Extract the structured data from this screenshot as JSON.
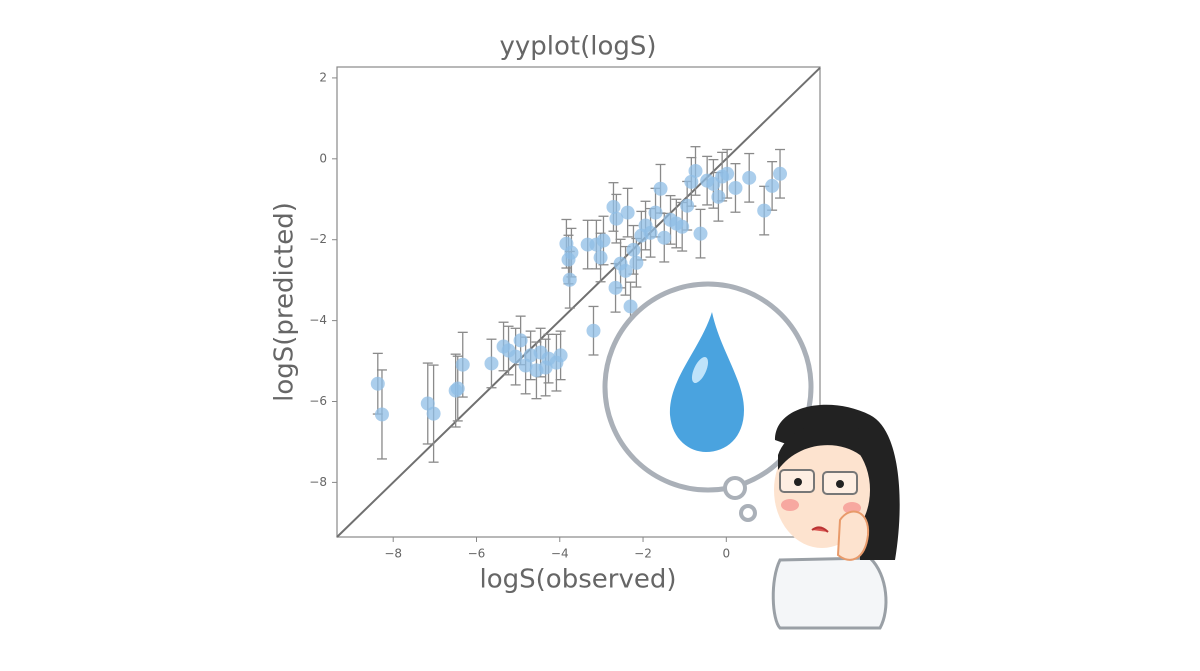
{
  "chart_data": {
    "type": "scatter",
    "title": "yyplot(logS)",
    "x_label": "logS(observed)",
    "y_label": "logS(predicted)",
    "xlim": [
      -9.35,
      2.25
    ],
    "ylim": [
      -9.35,
      2.27
    ],
    "xticks": [
      {
        "value": -8,
        "label": "−8"
      },
      {
        "value": -6,
        "label": "−6"
      },
      {
        "value": -4,
        "label": "−4"
      },
      {
        "value": -2,
        "label": "−2"
      },
      0
    ],
    "yticks": [
      2,
      0,
      {
        "value": -2,
        "label": "−2"
      },
      {
        "value": -4,
        "label": "−4"
      },
      {
        "value": -6,
        "label": "−6"
      },
      {
        "value": -8,
        "label": "−8"
      }
    ],
    "color": "#8fbde6",
    "errorbar_color": "#8a8a8a",
    "reference_line": true,
    "x": [
      -8.37,
      -8.27,
      -7.17,
      -7.03,
      -6.5,
      -6.45,
      -6.33,
      -5.64,
      -5.35,
      -5.23,
      -5.06,
      -4.94,
      -4.82,
      -4.7,
      -4.56,
      -4.46,
      -4.27,
      -4.08,
      -3.98,
      -4.34,
      -3.19,
      -3.84,
      -3.79,
      -3.76,
      -3.72,
      -3.33,
      -3.12,
      -3.02,
      -2.95,
      -2.71,
      -2.66,
      -2.64,
      -2.54,
      -2.42,
      -2.37,
      -2.3,
      -2.23,
      -2.16,
      -2.04,
      -1.94,
      -1.82,
      -1.7,
      -1.58,
      -1.49,
      -1.34,
      -1.2,
      -1.06,
      -0.94,
      -0.84,
      -0.74,
      -0.62,
      -0.46,
      -0.31,
      -0.19,
      -0.1,
      0.02,
      0.22,
      0.55,
      0.91,
      1.1,
      1.29
    ],
    "y": [
      -5.56,
      -6.32,
      -6.05,
      -6.3,
      -5.73,
      -5.68,
      -5.09,
      -5.06,
      -4.64,
      -4.74,
      -4.89,
      -4.49,
      -5.11,
      -4.86,
      -5.23,
      -4.79,
      -4.94,
      -5.04,
      -4.86,
      -5.16,
      -4.25,
      -2.1,
      -2.49,
      -2.99,
      -2.32,
      -2.12,
      -2.12,
      -2.44,
      -2.02,
      -1.19,
      -3.19,
      -1.48,
      -2.59,
      -2.77,
      -1.33,
      -3.65,
      -2.25,
      -2.57,
      -1.9,
      -1.65,
      -1.83,
      -1.33,
      -0.74,
      -1.95,
      -1.51,
      -1.6,
      -1.68,
      -1.16,
      -0.57,
      -0.3,
      -1.85,
      -0.54,
      -0.62,
      -0.94,
      -0.44,
      -0.37,
      -0.72,
      -0.47,
      -1.28,
      -0.67,
      -0.37
    ],
    "yerr": [
      0.75,
      1.1,
      1.0,
      1.2,
      0.9,
      0.8,
      0.8,
      0.6,
      0.6,
      0.6,
      0.7,
      0.6,
      0.7,
      0.6,
      0.7,
      0.6,
      0.6,
      0.7,
      0.6,
      0.7,
      0.6,
      0.6,
      0.6,
      0.7,
      0.6,
      0.6,
      0.6,
      0.6,
      0.6,
      0.6,
      0.6,
      0.6,
      0.6,
      0.6,
      0.6,
      0.6,
      0.6,
      0.6,
      0.6,
      0.6,
      0.6,
      0.6,
      0.6,
      0.6,
      0.6,
      0.6,
      0.6,
      0.6,
      0.6,
      0.6,
      0.6,
      0.6,
      0.6,
      0.6,
      0.6,
      0.6,
      0.6,
      0.6,
      0.6,
      0.6,
      0.6
    ]
  }
}
